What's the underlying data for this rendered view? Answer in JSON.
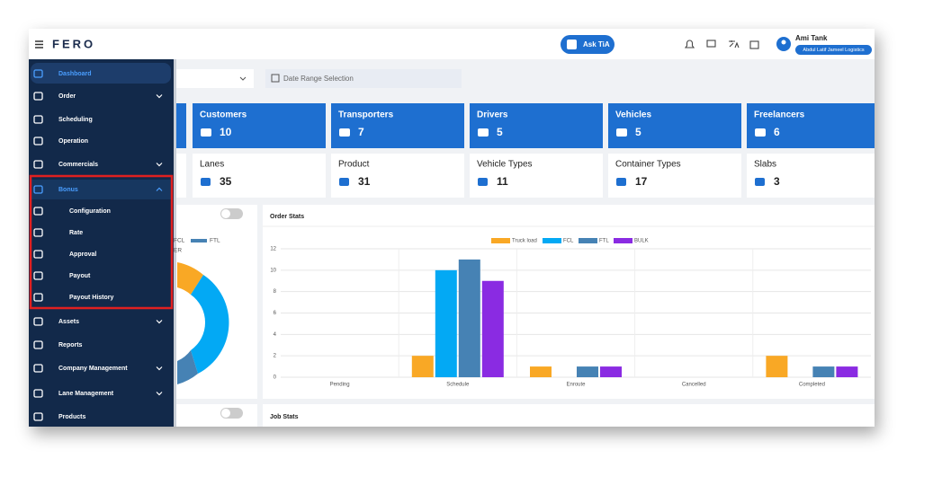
{
  "header": {
    "logo": "FERO",
    "ask_button": "Ask TiA",
    "user_name": "Ami Tank",
    "company": "Abdul Latif Jameel Logistics"
  },
  "sidebar": {
    "items": [
      "Dashboard",
      "Order",
      "Scheduling",
      "Operation",
      "Commercials",
      "Bonus",
      "Configuration",
      "Rate",
      "Approval",
      "Payout",
      "Payout History",
      "Assets",
      "Reports",
      "Company Management",
      "Lane Management",
      "Products"
    ]
  },
  "filters": {
    "date_range_placeholder": "Date Range Selection"
  },
  "summary_cards": [
    {
      "label": "Customers",
      "value": 10
    },
    {
      "label": "Transporters",
      "value": 7
    },
    {
      "label": "Drivers",
      "value": 5
    },
    {
      "label": "Vehicles",
      "value": 5
    },
    {
      "label": "Freelancers",
      "value": 6
    }
  ],
  "count_cards": [
    {
      "label": "Lanes",
      "value": 35
    },
    {
      "label": "Product",
      "value": 31
    },
    {
      "label": "Vehicle Types",
      "value": 11
    },
    {
      "label": "Container Types",
      "value": 17
    },
    {
      "label": "Slabs",
      "value": 3
    }
  ],
  "left_panel_legend": [
    "FCL",
    "FTL",
    "ER"
  ],
  "chart_data": {
    "type": "bar",
    "title": "Order Stats",
    "categories": [
      "Pending",
      "Schedule",
      "Enroute",
      "Cancelled",
      "Completed"
    ],
    "series": [
      {
        "name": "Truck load",
        "color": "#f9a825",
        "values": [
          0,
          2,
          1,
          0,
          2
        ]
      },
      {
        "name": "FCL",
        "color": "#03a9f4",
        "values": [
          0,
          10,
          0,
          0,
          0
        ]
      },
      {
        "name": "FTL",
        "color": "#4682b4",
        "values": [
          0,
          11,
          1,
          0,
          1
        ]
      },
      {
        "name": "BULK",
        "color": "#8a2be2",
        "values": [
          0,
          9,
          1,
          0,
          1
        ]
      }
    ],
    "ylim": [
      0,
      12
    ],
    "yticks": [
      0,
      2,
      4,
      6,
      8,
      10,
      12
    ],
    "grid": true
  },
  "job_stats_title": "Job Stats"
}
